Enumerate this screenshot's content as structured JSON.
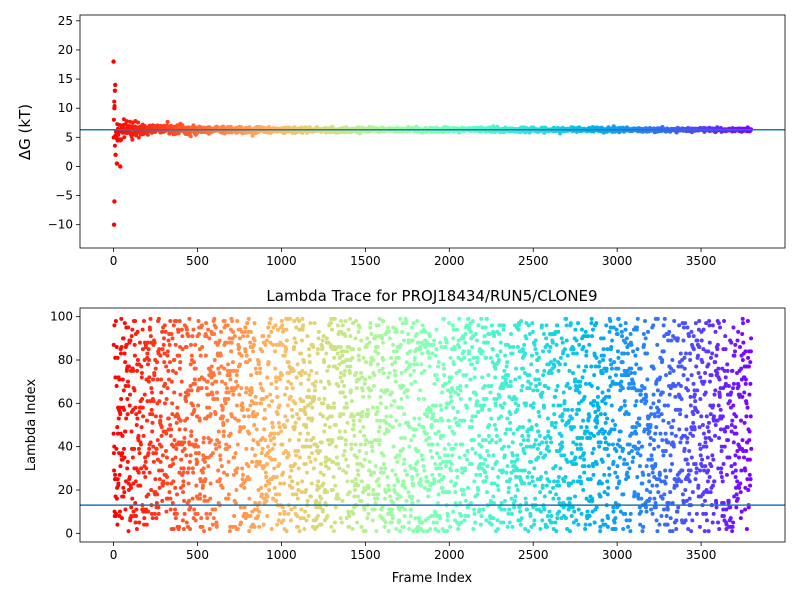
{
  "chart_data": [
    {
      "type": "scatter",
      "title": "",
      "xlabel": "",
      "ylabel": "ΔG (kT)",
      "xlim": [
        -200,
        4000
      ],
      "ylim": [
        -14,
        26
      ],
      "xticks": [
        0,
        500,
        1000,
        1500,
        2000,
        2500,
        3000,
        3500
      ],
      "yticks": [
        -10,
        -5,
        0,
        5,
        10,
        15,
        20,
        25
      ],
      "reference_line": 6.3,
      "colormap": "rainbow",
      "frames": 3800,
      "converged_value": 6.3,
      "notable_points": [
        {
          "x": 0,
          "y": 18
        },
        {
          "x": 5,
          "y": -6
        },
        {
          "x": 3,
          "y": -10
        },
        {
          "x": 10,
          "y": 14
        },
        {
          "x": 8,
          "y": 13
        },
        {
          "x": 5,
          "y": 10
        },
        {
          "x": 12,
          "y": 2
        },
        {
          "x": 20,
          "y": 0.5
        },
        {
          "x": 40,
          "y": 0
        }
      ]
    },
    {
      "type": "scatter",
      "title": "Lambda Trace for PROJ18434/RUN5/CLONE9",
      "xlabel": "Frame Index",
      "ylabel": "Lambda Index",
      "xlim": [
        -200,
        4000
      ],
      "ylim": [
        -4,
        104
      ],
      "xticks": [
        0,
        500,
        1000,
        1500,
        2000,
        2500,
        3000,
        3500
      ],
      "yticks": [
        0,
        20,
        40,
        60,
        80,
        100
      ],
      "reference_line": 13,
      "colormap": "rainbow",
      "frames": 3800,
      "lambda_range": [
        1,
        99
      ]
    }
  ],
  "colors": {
    "reference_line": "#1f77b4",
    "axes": "#000000"
  }
}
